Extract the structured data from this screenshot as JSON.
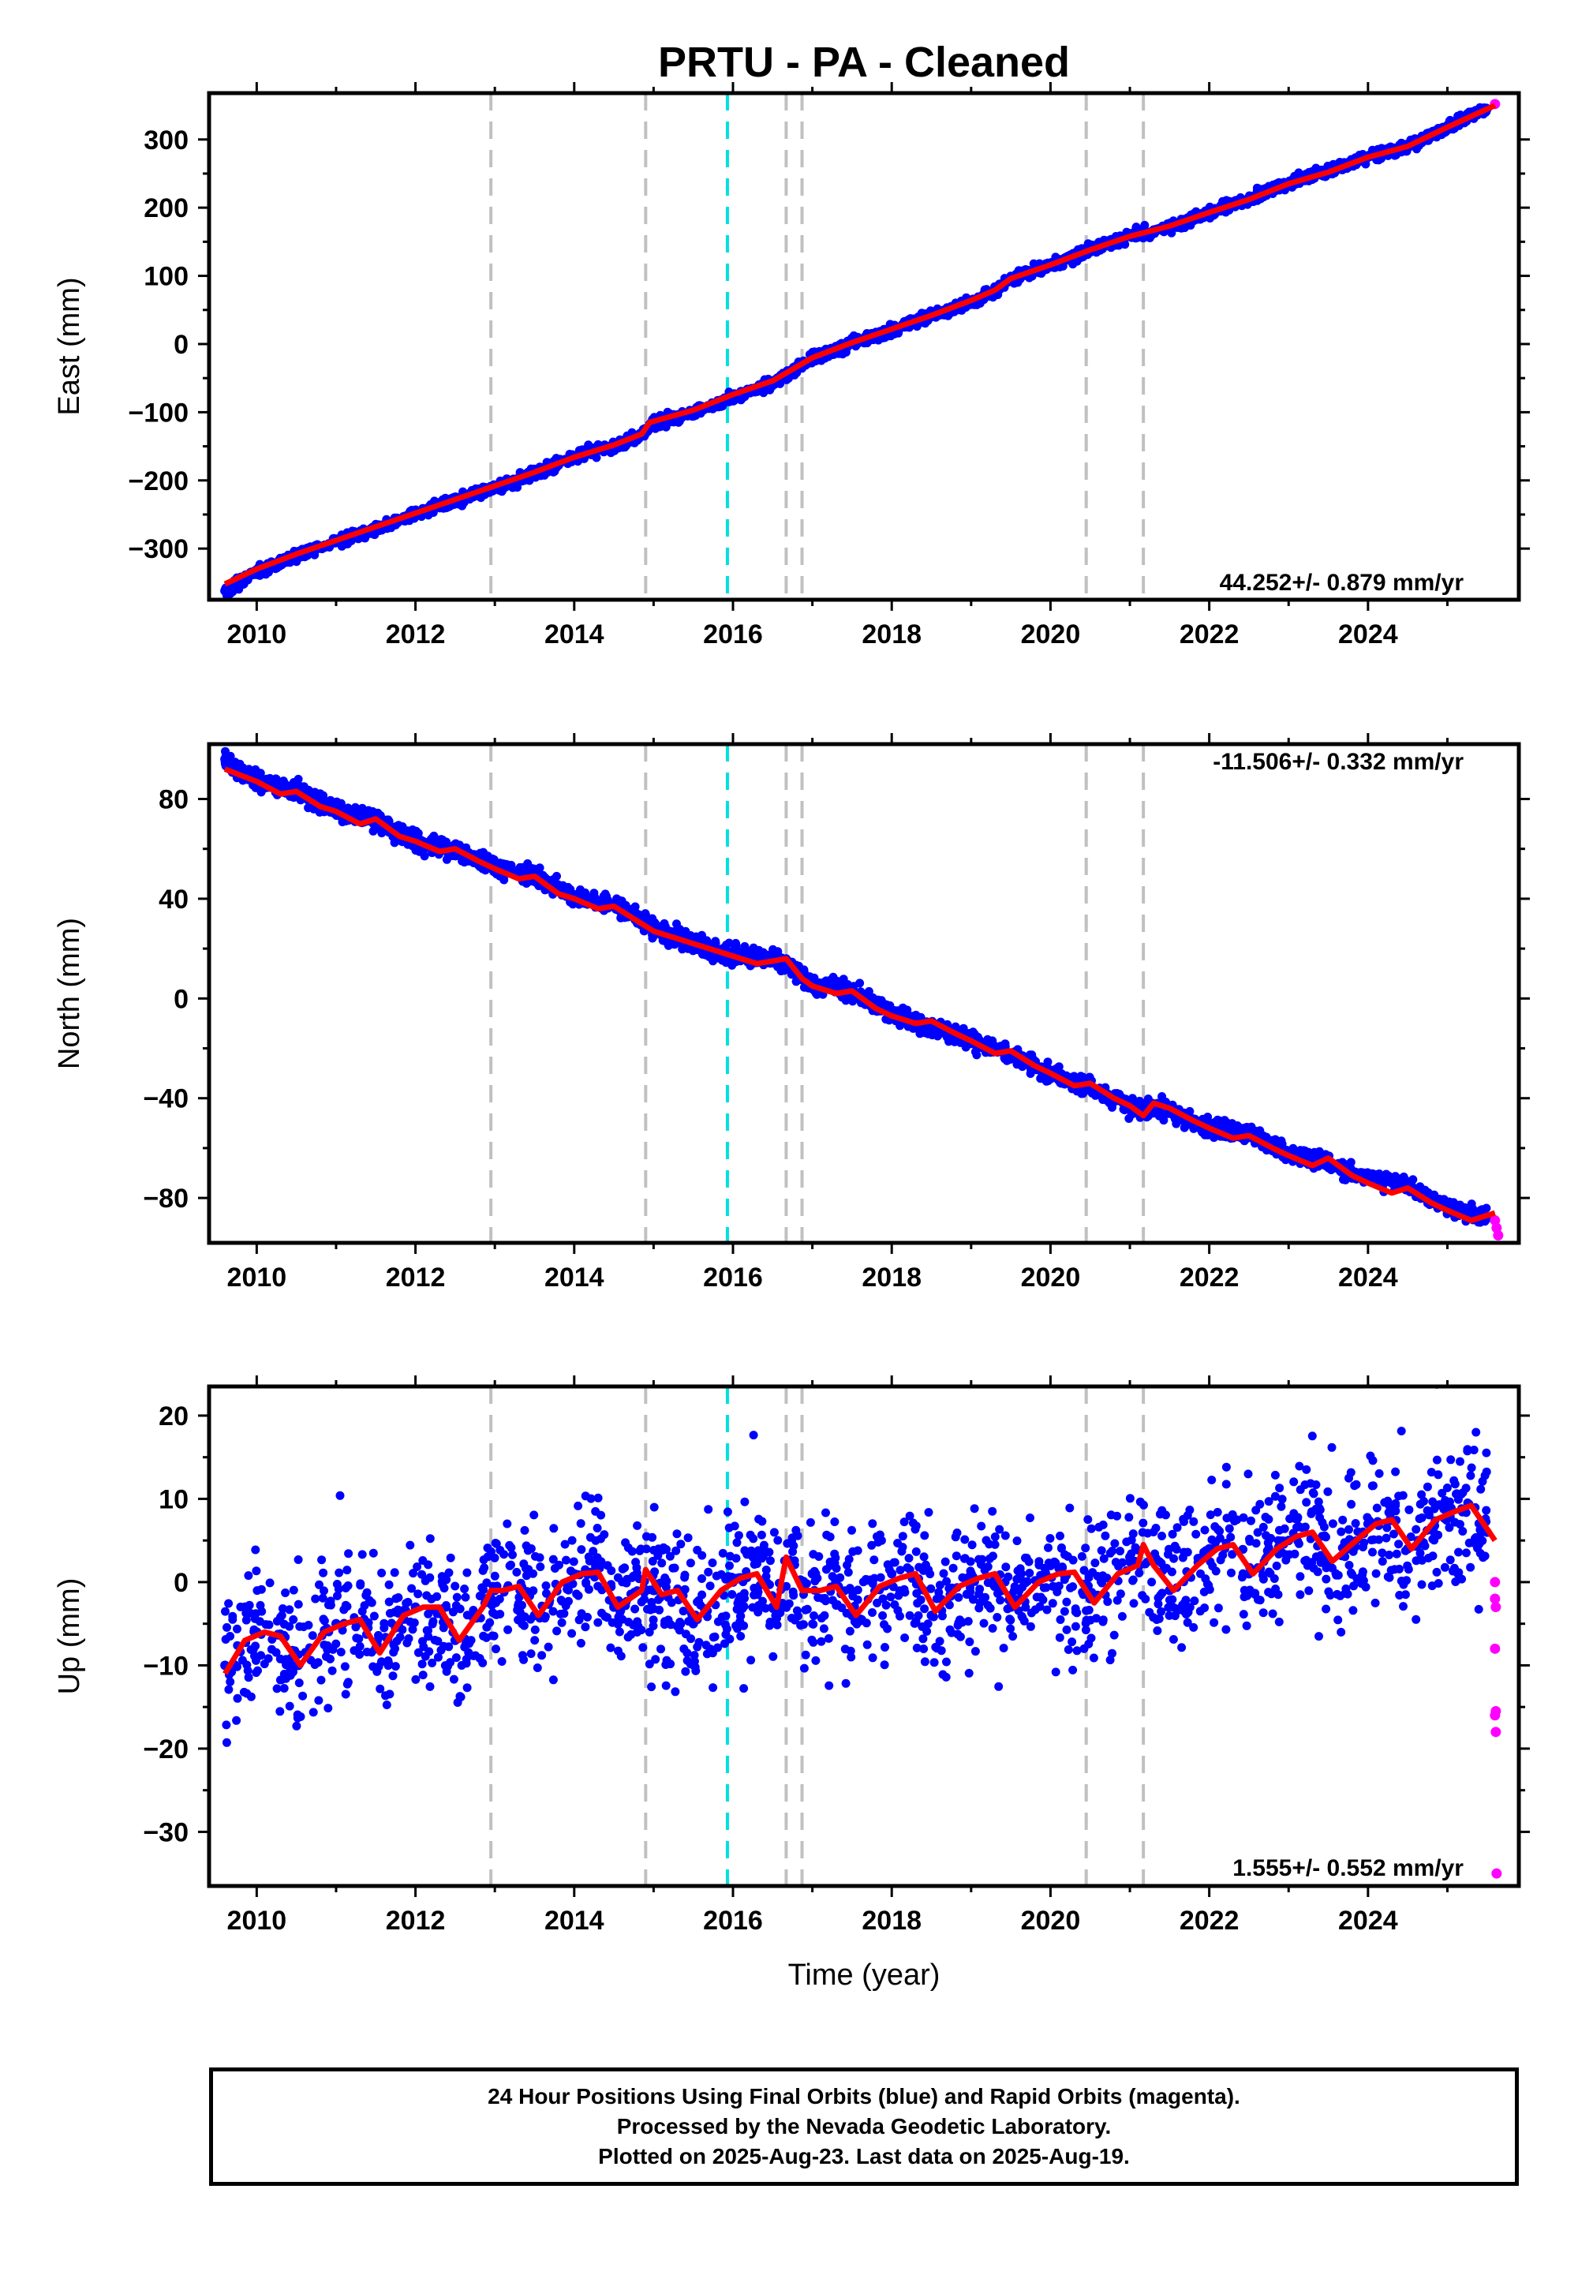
{
  "title": "PRTU  - PA - Cleaned",
  "colors": {
    "final": "#0000ff",
    "rapid": "#ff00ff",
    "model": "#ff0000",
    "steps": "#c0c0c0",
    "event": "#00e0e0"
  },
  "xaxis": {
    "label": "Time (year)",
    "range": [
      2009.4,
      2025.9
    ],
    "ticks": [
      "2010",
      "2012",
      "2014",
      "2016",
      "2018",
      "2020",
      "2022",
      "2024"
    ]
  },
  "step_lines": [
    2012.95,
    2014.9,
    2016.67,
    2016.87,
    2020.45,
    2021.17
  ],
  "event_line": 2015.93,
  "chart_data": [
    {
      "type": "scatter",
      "ylabel": "East (mm)",
      "ylim": [
        -375,
        368
      ],
      "yticks": [
        "300",
        "200",
        "100",
        "0",
        "−100",
        "−200",
        "−300"
      ],
      "rate_label": "44.252+/- 0.879 mm/yr",
      "series": [
        {
          "name": "Final Orbits",
          "color": "#0000ff",
          "x": [
            2009.6,
            2010.0,
            2010.5,
            2011.0,
            2011.5,
            2012.0,
            2012.5,
            2013.0,
            2013.5,
            2014.0,
            2014.5,
            2014.85,
            2014.95,
            2015.5,
            2016.0,
            2016.5,
            2017.0,
            2017.5,
            2018.0,
            2018.5,
            2019.0,
            2019.3,
            2019.5,
            2020.0,
            2020.5,
            2021.0,
            2021.5,
            2022.0,
            2022.5,
            2023.0,
            2023.5,
            2024.0,
            2024.5,
            2025.0,
            2025.5
          ],
          "y": [
            -362,
            -335,
            -310,
            -290,
            -272,
            -250,
            -230,
            -212,
            -190,
            -165,
            -150,
            -133,
            -118,
            -100,
            -78,
            -58,
            -22,
            0,
            20,
            42,
            62,
            78,
            96,
            115,
            137,
            158,
            172,
            193,
            213,
            237,
            254,
            275,
            290,
            318,
            345
          ]
        },
        {
          "name": "Rapid Orbits",
          "color": "#ff00ff",
          "x": [
            2025.6
          ],
          "y": [
            352
          ]
        },
        {
          "name": "Model",
          "color": "#ff0000",
          "x": [
            2009.6,
            2010.0,
            2010.5,
            2011.0,
            2011.5,
            2012.0,
            2012.5,
            2013.0,
            2013.5,
            2014.0,
            2014.5,
            2014.85,
            2014.95,
            2015.5,
            2016.0,
            2016.5,
            2017.0,
            2017.5,
            2018.0,
            2018.5,
            2019.0,
            2019.3,
            2019.5,
            2020.0,
            2020.5,
            2021.0,
            2021.5,
            2022.0,
            2022.5,
            2023.0,
            2023.5,
            2024.0,
            2024.5,
            2025.0,
            2025.6
          ],
          "y": [
            -352,
            -330,
            -308,
            -288,
            -268,
            -248,
            -228,
            -208,
            -188,
            -166,
            -148,
            -132,
            -115,
            -97,
            -74,
            -54,
            -20,
            2,
            22,
            42,
            64,
            79,
            96,
            116,
            138,
            158,
            173,
            193,
            212,
            235,
            252,
            274,
            290,
            318,
            350
          ]
        }
      ]
    },
    {
      "type": "scatter",
      "ylabel": "North (mm)",
      "ylim": [
        -98,
        102
      ],
      "yticks": [
        "80",
        "40",
        "0",
        "−40",
        "−80"
      ],
      "rate_label": "-11.506+/- 0.332 mm/yr",
      "series": [
        {
          "name": "Final Orbits",
          "color": "#0000ff",
          "x": [
            2009.6,
            2010.0,
            2010.5,
            2011.0,
            2011.5,
            2012.0,
            2012.5,
            2013.0,
            2013.5,
            2014.0,
            2014.5,
            2015.0,
            2015.5,
            2016.0,
            2016.5,
            2016.75,
            2017.0,
            2017.5,
            2018.0,
            2018.5,
            2019.0,
            2019.5,
            2020.0,
            2020.5,
            2021.0,
            2021.5,
            2022.0,
            2022.5,
            2023.0,
            2023.5,
            2024.0,
            2024.5,
            2025.0,
            2025.5
          ],
          "y": [
            96,
            87,
            83,
            76,
            71,
            63,
            59,
            53,
            49,
            41,
            38,
            28,
            22,
            17,
            17,
            12,
            6,
            3,
            -6,
            -11,
            -17,
            -23,
            -30,
            -35,
            -44,
            -45,
            -52,
            -54,
            -62,
            -66,
            -72,
            -75,
            -84,
            -88
          ]
        },
        {
          "name": "Rapid Orbits",
          "color": "#ff00ff",
          "x": [
            2025.6,
            2025.62,
            2025.64
          ],
          "y": [
            -89,
            -92,
            -95
          ]
        },
        {
          "name": "Model",
          "color": "#ff0000",
          "x": [
            2009.6,
            2010.0,
            2010.3,
            2010.5,
            2010.8,
            2011.0,
            2011.3,
            2011.5,
            2011.8,
            2012.0,
            2012.3,
            2012.5,
            2012.8,
            2013.0,
            2013.3,
            2013.5,
            2013.8,
            2014.0,
            2014.3,
            2014.5,
            2014.8,
            2015.0,
            2015.5,
            2016.0,
            2016.3,
            2016.5,
            2016.67,
            2016.87,
            2017.0,
            2017.3,
            2017.5,
            2017.8,
            2018.0,
            2018.3,
            2018.5,
            2018.8,
            2019.0,
            2019.3,
            2019.5,
            2019.8,
            2020.0,
            2020.3,
            2020.5,
            2020.8,
            2021.0,
            2021.17,
            2021.3,
            2021.5,
            2021.8,
            2022.0,
            2022.3,
            2022.5,
            2022.8,
            2023.0,
            2023.3,
            2023.5,
            2023.8,
            2024.0,
            2024.3,
            2024.5,
            2024.8,
            2025.0,
            2025.3,
            2025.6
          ],
          "y": [
            92,
            87,
            82,
            83,
            77,
            75,
            70,
            72,
            65,
            63,
            59,
            60,
            55,
            52,
            48,
            49,
            42,
            40,
            36,
            37,
            31,
            27,
            22,
            17,
            14,
            15,
            16,
            8,
            5,
            2,
            3,
            -4,
            -7,
            -10,
            -9,
            -14,
            -17,
            -22,
            -21,
            -27,
            -30,
            -35,
            -34,
            -40,
            -43,
            -47,
            -42,
            -44,
            -49,
            -52,
            -56,
            -55,
            -60,
            -63,
            -67,
            -64,
            -71,
            -74,
            -78,
            -76,
            -82,
            -85,
            -89,
            -86
          ]
        }
      ]
    },
    {
      "type": "scatter",
      "ylabel": "Up (mm)",
      "ylim": [
        -36.5,
        23.5
      ],
      "yticks": [
        "20",
        "10",
        "0",
        "−10",
        "−20",
        "−30"
      ],
      "rate_label": "1.555+/- 0.552 mm/yr",
      "series": [
        {
          "name": "Final Orbits",
          "color": "#0000ff",
          "x": [
            2009.6,
            2010.0,
            2010.5,
            2011.0,
            2011.5,
            2012.0,
            2012.5,
            2013.0,
            2013.5,
            2014.0,
            2014.5,
            2015.0,
            2015.5,
            2016.0,
            2016.5,
            2017.0,
            2017.5,
            2018.0,
            2018.5,
            2019.0,
            2019.5,
            2020.0,
            2020.5,
            2021.0,
            2021.5,
            2022.0,
            2022.5,
            2023.0,
            2023.5,
            2024.0,
            2024.5,
            2025.0,
            2025.5
          ],
          "y": [
            -10,
            -6,
            -10,
            -5,
            -8,
            -3,
            -7,
            -1,
            -4,
            1,
            -3,
            -1,
            -5,
            0,
            -3,
            1,
            -4,
            1,
            -4,
            1,
            -3,
            2,
            -2,
            3,
            -1,
            4,
            1,
            5,
            2,
            7,
            4,
            8,
            6
          ]
        },
        {
          "name": "Rapid Orbits",
          "color": "#ff00ff",
          "x": [
            2025.6,
            2025.6,
            2025.61,
            2025.6,
            2025.61,
            2025.6,
            2025.61,
            2025.62
          ],
          "y": [
            0,
            -2,
            -3,
            -8,
            -15.5,
            -16,
            -18,
            -35
          ]
        },
        {
          "name": "Model",
          "color": "#ff0000",
          "x": [
            2009.6,
            2009.85,
            2010.1,
            2010.3,
            2010.55,
            2010.85,
            2011.1,
            2011.3,
            2011.55,
            2011.85,
            2012.1,
            2012.3,
            2012.55,
            2012.85,
            2012.95,
            2013.1,
            2013.3,
            2013.55,
            2013.85,
            2014.1,
            2014.3,
            2014.55,
            2014.85,
            2014.9,
            2015.1,
            2015.3,
            2015.55,
            2015.85,
            2016.1,
            2016.3,
            2016.55,
            2016.67,
            2016.87,
            2017.1,
            2017.3,
            2017.55,
            2017.85,
            2018.1,
            2018.3,
            2018.55,
            2018.85,
            2019.1,
            2019.3,
            2019.55,
            2019.85,
            2020.1,
            2020.3,
            2020.55,
            2020.85,
            2021.1,
            2021.17,
            2021.3,
            2021.55,
            2021.85,
            2022.1,
            2022.3,
            2022.55,
            2022.85,
            2023.1,
            2023.3,
            2023.55,
            2023.85,
            2024.1,
            2024.3,
            2024.55,
            2024.85,
            2025.1,
            2025.3,
            2025.6
          ],
          "y": [
            -11,
            -7,
            -6,
            -6.5,
            -10,
            -6,
            -5,
            -4.5,
            -8.5,
            -4,
            -3,
            -3,
            -7,
            -3,
            -1,
            -1,
            -0.5,
            -4,
            0,
            1,
            1.2,
            -3,
            -1,
            1.5,
            -1.5,
            -1,
            -4.5,
            -1,
            0.5,
            1,
            -3,
            3,
            -1,
            -1,
            -0.5,
            -4,
            -0.5,
            0.5,
            1,
            -3.5,
            -0.5,
            0.5,
            1,
            -3,
            0,
            1,
            1.2,
            -2.5,
            1,
            2,
            4.5,
            2,
            -1,
            2,
            4,
            4.5,
            1,
            4,
            5.5,
            6,
            2.5,
            5,
            7,
            7.5,
            4,
            7.5,
            8.5,
            9.2,
            5
          ]
        }
      ]
    }
  ],
  "footer": {
    "line1": "24 Hour Positions Using Final Orbits (blue) and Rapid Orbits (magenta).",
    "line2": "Processed by the Nevada Geodetic Laboratory.",
    "line3": "Plotted on 2025-Aug-23. Last data on 2025-Aug-19."
  }
}
